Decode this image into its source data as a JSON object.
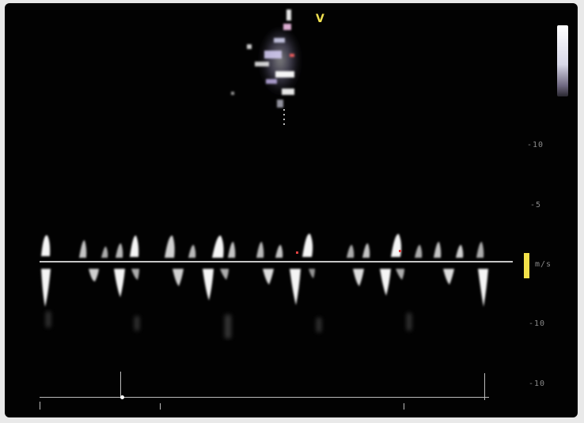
{
  "image": {
    "mode": "spectral doppler",
    "colors": {
      "background": "#020202",
      "spectrum": "#f5f5f5",
      "marker": "#f2e14a"
    }
  },
  "top_marker": "V",
  "scale": {
    "labels": [
      "-10",
      "-5",
      "m/s",
      "-10",
      "-10"
    ]
  }
}
